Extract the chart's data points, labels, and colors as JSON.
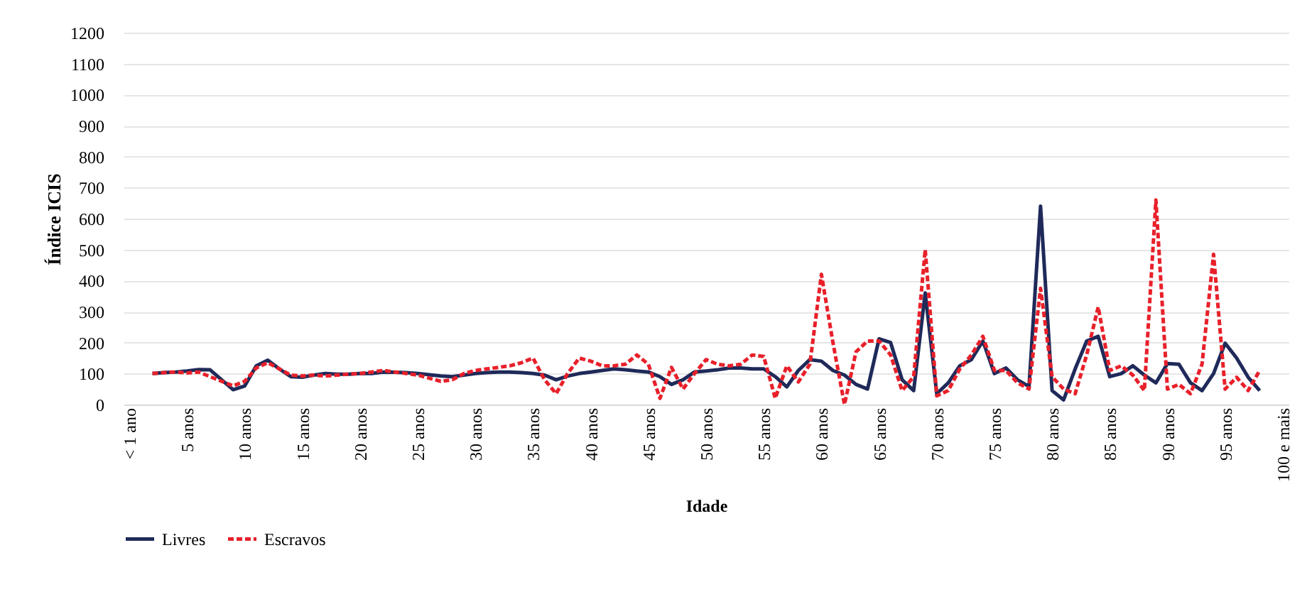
{
  "chart_data": {
    "type": "line",
    "xlabel": "Idade",
    "ylabel": "Índice ICIS",
    "categories": [
      "< 1 ano",
      null,
      null,
      null,
      null,
      "5 anos",
      null,
      null,
      null,
      null,
      "10 anos",
      null,
      null,
      null,
      null,
      "15 anos",
      null,
      null,
      null,
      null,
      "20 anos",
      null,
      null,
      null,
      null,
      "25 anos",
      null,
      null,
      null,
      null,
      "30 anos",
      null,
      null,
      null,
      null,
      "35 anos",
      null,
      null,
      null,
      null,
      "40 anos",
      null,
      null,
      null,
      null,
      "45 anos",
      null,
      null,
      null,
      null,
      "50 anos",
      null,
      null,
      null,
      null,
      "55 anos",
      null,
      null,
      null,
      null,
      "60 anos",
      null,
      null,
      null,
      null,
      "65 anos",
      null,
      null,
      null,
      null,
      "70 anos",
      null,
      null,
      null,
      null,
      "75 anos",
      null,
      null,
      null,
      null,
      "80 anos",
      null,
      null,
      null,
      null,
      "85 anos",
      null,
      null,
      null,
      null,
      "90 anos",
      null,
      null,
      null,
      null,
      "95 anos",
      null,
      null,
      null,
      null,
      "100 e mais"
    ],
    "series": [
      {
        "name": "Livres",
        "color": "#1f2a5a",
        "line_style": "solid",
        "values": [
          null,
          null,
          100,
          103,
          105,
          108,
          113,
          112,
          80,
          48,
          60,
          125,
          143,
          115,
          90,
          88,
          95,
          100,
          98,
          98,
          100,
          100,
          105,
          104,
          103,
          100,
          96,
          92,
          90,
          95,
          100,
          103,
          105,
          105,
          103,
          100,
          95,
          80,
          92,
          100,
          105,
          110,
          115,
          112,
          108,
          105,
          90,
          65,
          80,
          105,
          108,
          112,
          118,
          118,
          115,
          115,
          90,
          57,
          110,
          145,
          140,
          110,
          95,
          65,
          50,
          212,
          200,
          80,
          45,
          360,
          35,
          70,
          125,
          145,
          205,
          100,
          118,
          80,
          58,
          640,
          45,
          15,
          115,
          205,
          220,
          90,
          100,
          125,
          95,
          70,
          132,
          130,
          70,
          45,
          100,
          198,
          150,
          88,
          45,
          null,
          null
        ]
      },
      {
        "name": "Escravos",
        "color": "#e8202a",
        "line_style": "dashed",
        "values": [
          null,
          null,
          100,
          103,
          105,
          102,
          105,
          90,
          75,
          60,
          75,
          118,
          135,
          115,
          95,
          92,
          95,
          92,
          95,
          98,
          100,
          105,
          110,
          105,
          100,
          95,
          85,
          75,
          80,
          100,
          110,
          115,
          120,
          125,
          135,
          150,
          80,
          35,
          100,
          150,
          140,
          125,
          125,
          130,
          160,
          130,
          20,
          120,
          50,
          100,
          145,
          130,
          125,
          130,
          160,
          155,
          20,
          125,
          73,
          130,
          420,
          200,
          0,
          170,
          205,
          205,
          160,
          45,
          90,
          500,
          28,
          45,
          115,
          160,
          220,
          110,
          110,
          70,
          50,
          375,
          90,
          50,
          35,
          160,
          315,
          110,
          125,
          95,
          45,
          660,
          50,
          65,
          35,
          130,
          485,
          50,
          88,
          45,
          110,
          null,
          null
        ]
      }
    ],
    "ylim": [
      0,
      1200
    ],
    "yticks": [
      0,
      100,
      200,
      300,
      400,
      500,
      600,
      700,
      800,
      900,
      1000,
      1100,
      1200
    ],
    "grid": "y",
    "legend": "bottom"
  }
}
